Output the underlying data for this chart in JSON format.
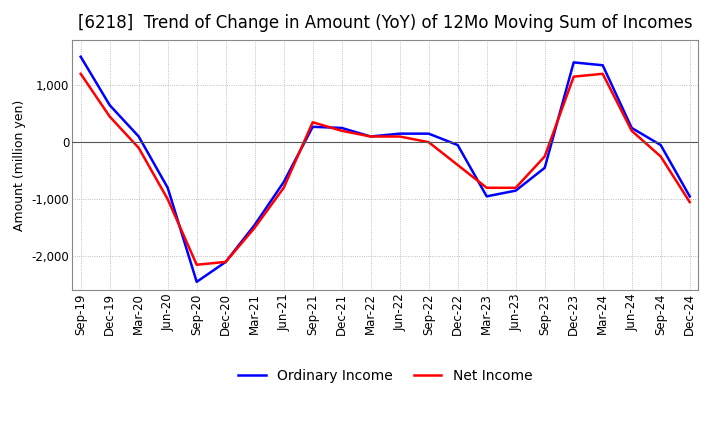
{
  "title": "[6218]  Trend of Change in Amount (YoY) of 12Mo Moving Sum of Incomes",
  "ylabel": "Amount (million yen)",
  "x_labels": [
    "Sep-19",
    "Dec-19",
    "Mar-20",
    "Jun-20",
    "Sep-20",
    "Dec-20",
    "Mar-21",
    "Jun-21",
    "Sep-21",
    "Dec-21",
    "Mar-22",
    "Jun-22",
    "Sep-22",
    "Dec-22",
    "Mar-23",
    "Jun-23",
    "Sep-23",
    "Dec-23",
    "Mar-24",
    "Jun-24",
    "Sep-24",
    "Dec-24"
  ],
  "ordinary_income": [
    1500,
    650,
    100,
    -800,
    -2450,
    -2100,
    -1450,
    -700,
    270,
    250,
    100,
    150,
    150,
    -50,
    -950,
    -850,
    -450,
    1400,
    1350,
    250,
    -50,
    -950
  ],
  "net_income": [
    1200,
    450,
    -100,
    -1000,
    -2150,
    -2100,
    -1500,
    -800,
    350,
    200,
    100,
    100,
    0,
    -400,
    -800,
    -800,
    -250,
    1150,
    1200,
    200,
    -250,
    -1050
  ],
  "ordinary_color": "#0000ff",
  "net_color": "#ff0000",
  "ylim": [
    -2600,
    1800
  ],
  "yticks": [
    -2000,
    -1000,
    0,
    1000
  ],
  "background_color": "#ffffff",
  "grid_color": "#aaaaaa",
  "title_fontsize": 12,
  "axis_fontsize": 9,
  "tick_fontsize": 8.5,
  "legend_fontsize": 10
}
